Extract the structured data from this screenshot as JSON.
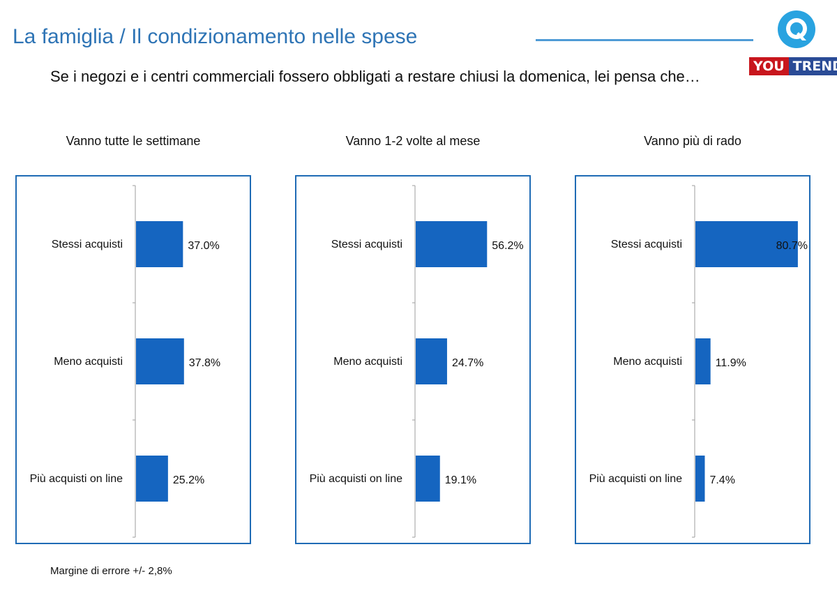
{
  "header": {
    "title": "La famiglia / Il condizionamento nelle spese",
    "question": "Se i negozi e i centri commerciali fossero obbligati a restare chiusi la domenica, lei pensa che…"
  },
  "logo": {
    "brand_left": "YOU",
    "brand_right": "TREND"
  },
  "footnote": "Margine di errore +/- 2,8%",
  "colors": {
    "bar": "#1565c0",
    "frame": "#1f6bb5",
    "title": "#2e74b5"
  },
  "chart_data": [
    {
      "type": "bar",
      "orientation": "horizontal",
      "title": "Vanno tutte le settimane",
      "categories": [
        "Stessi acquisti",
        "Meno acquisti",
        "Più acquisti on line"
      ],
      "values": [
        37.0,
        37.8,
        25.2
      ],
      "value_labels": [
        "37.0%",
        "37.8%",
        "25.2%"
      ],
      "xlim": [
        0,
        100
      ]
    },
    {
      "type": "bar",
      "orientation": "horizontal",
      "title": "Vanno 1-2 volte al mese",
      "categories": [
        "Stessi acquisti",
        "Meno acquisti",
        "Più acquisti on line"
      ],
      "values": [
        56.2,
        24.7,
        19.1
      ],
      "value_labels": [
        "56.2%",
        "24.7%",
        "19.1%"
      ],
      "xlim": [
        0,
        100
      ]
    },
    {
      "type": "bar",
      "orientation": "horizontal",
      "title": "Vanno più di rado",
      "categories": [
        "Stessi acquisti",
        "Meno acquisti",
        "Più acquisti on line"
      ],
      "values": [
        80.7,
        11.9,
        7.4
      ],
      "value_labels": [
        "80.7%",
        "11.9%",
        "7.4%"
      ],
      "xlim": [
        0,
        100
      ]
    }
  ]
}
